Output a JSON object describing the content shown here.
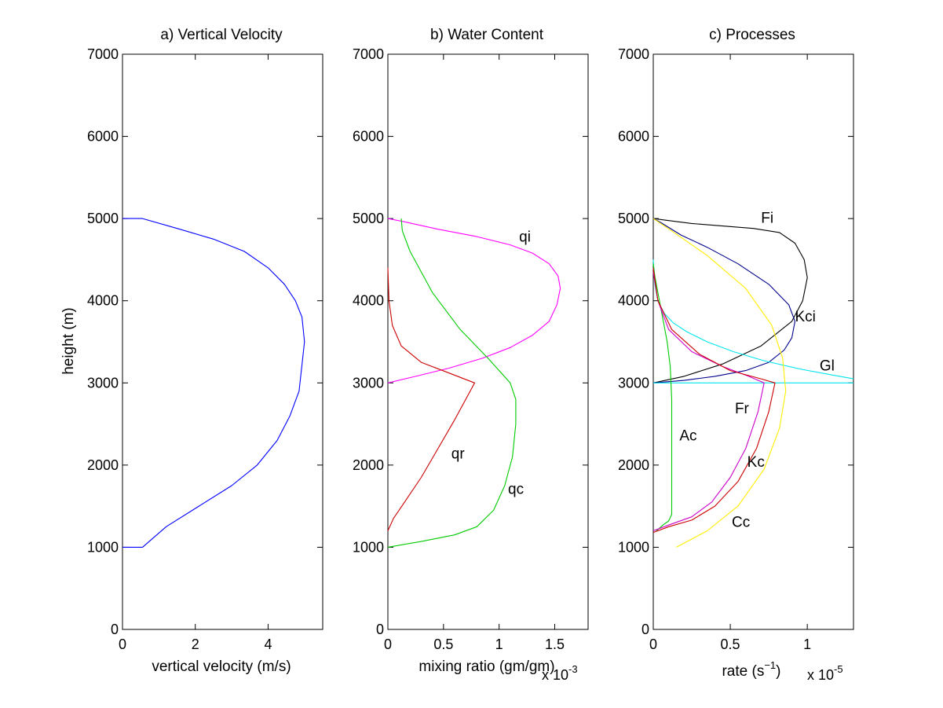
{
  "figure": {
    "background": "#ffffff",
    "axis_color": "#000000"
  },
  "chart_data": [
    {
      "type": "line",
      "title": "a) Vertical Velocity",
      "xlabel": "vertical velocity (m/s)",
      "ylabel": "height (m)",
      "x_exponent_label": "",
      "xlim": [
        0,
        5.5
      ],
      "ylim": [
        0,
        7000
      ],
      "xticks": [
        0,
        2,
        4
      ],
      "xtick_labels": [
        "0",
        "2",
        "4"
      ],
      "yticks": [
        0,
        1000,
        2000,
        3000,
        4000,
        5000,
        6000,
        7000
      ],
      "ytick_labels": [
        "0",
        "1000",
        "2000",
        "3000",
        "4000",
        "5000",
        "6000",
        "7000"
      ],
      "grid": false,
      "series": [
        {
          "color": "#0000ff",
          "x": [
            0,
            0.55,
            1.2,
            2.1,
            3.0,
            3.7,
            4.25,
            4.6,
            4.85,
            5.0,
            4.93,
            4.75,
            4.45,
            4.0,
            3.35,
            2.5,
            1.5,
            0.55,
            0
          ],
          "y": [
            1000,
            1000,
            1250,
            1500,
            1750,
            2000,
            2300,
            2600,
            2900,
            3500,
            3800,
            4000,
            4200,
            4400,
            4600,
            4750,
            4880,
            5000,
            5000
          ]
        }
      ],
      "annotations": []
    },
    {
      "type": "line",
      "title": "b) Water Content",
      "xlabel": "mixing ratio (gm/gm)",
      "ylabel": "",
      "x_exponent_label": "x 10",
      "x_exponent_power": "-3",
      "xlim": [
        0,
        1.8
      ],
      "ylim": [
        0,
        7000
      ],
      "xticks": [
        0,
        0.5,
        1,
        1.5
      ],
      "xtick_labels": [
        "0",
        "0.5",
        "1",
        "1.5"
      ],
      "yticks": [
        0,
        1000,
        2000,
        3000,
        4000,
        5000,
        6000,
        7000
      ],
      "ytick_labels": [
        "0",
        "1000",
        "2000",
        "3000",
        "4000",
        "5000",
        "6000",
        "7000"
      ],
      "grid": false,
      "series": [
        {
          "name": "qi",
          "color": "#ff00ff",
          "x": [
            0,
            0.25,
            0.55,
            0.85,
            1.1,
            1.3,
            1.45,
            1.52,
            1.55,
            1.53,
            1.45,
            1.3,
            1.1,
            0.8,
            0.45,
            0.15,
            0
          ],
          "y": [
            3000,
            3080,
            3180,
            3300,
            3430,
            3580,
            3750,
            3950,
            4150,
            4300,
            4450,
            4580,
            4680,
            4780,
            4870,
            4960,
            5000
          ]
        },
        {
          "name": "qc",
          "color": "#00cc00",
          "x": [
            0,
            0.3,
            0.6,
            0.8,
            0.95,
            1.05,
            1.12,
            1.15,
            1.15,
            1.1,
            0.9,
            0.65,
            0.4,
            0.2,
            0.13,
            0.12
          ],
          "y": [
            1000,
            1070,
            1150,
            1250,
            1450,
            1750,
            2100,
            2500,
            2800,
            3000,
            3300,
            3650,
            4100,
            4600,
            4850,
            5000
          ]
        },
        {
          "name": "qr",
          "color": "#cc0000",
          "x": [
            0,
            0.05,
            0.15,
            0.3,
            0.45,
            0.6,
            0.78,
            0.55,
            0.3,
            0.12,
            0.04,
            0.01,
            0
          ],
          "y": [
            1200,
            1350,
            1550,
            1850,
            2200,
            2550,
            3000,
            3120,
            3250,
            3450,
            3700,
            4000,
            4400
          ]
        }
      ],
      "annotations": [
        {
          "text": "qi",
          "x": 1.18,
          "y": 4720
        },
        {
          "text": "qc",
          "x": 1.08,
          "y": 1650
        },
        {
          "text": "qr",
          "x": 0.57,
          "y": 2080
        }
      ]
    },
    {
      "type": "line",
      "title": "c) Processes",
      "xlabel": "rate (s",
      "xlabel_sup": "−1",
      "xlabel_tail": ")",
      "ylabel": "",
      "x_exponent_label": "x 10",
      "x_exponent_power": "-5",
      "xlim": [
        0,
        1.3
      ],
      "ylim": [
        0,
        7000
      ],
      "xticks": [
        0,
        0.5,
        1
      ],
      "xtick_labels": [
        "0",
        "0.5",
        "1"
      ],
      "yticks": [
        0,
        1000,
        2000,
        3000,
        4000,
        5000,
        6000,
        7000
      ],
      "ytick_labels": [
        "0",
        "1000",
        "2000",
        "3000",
        "4000",
        "5000",
        "6000",
        "7000"
      ],
      "grid": false,
      "series": [
        {
          "name": "Fi",
          "color": "#000000",
          "x": [
            0,
            0.2,
            0.45,
            0.7,
            0.9,
            0.97,
            1.0,
            0.98,
            0.92,
            0.82,
            0.65,
            0.45,
            0.25,
            0.08,
            0
          ],
          "y": [
            3000,
            3080,
            3230,
            3450,
            3750,
            4000,
            4280,
            4500,
            4700,
            4830,
            4880,
            4910,
            4940,
            4980,
            5000
          ]
        },
        {
          "name": "Kci",
          "color": "#00008b",
          "x": [
            0,
            0.2,
            0.4,
            0.6,
            0.75,
            0.85,
            0.9,
            0.92,
            0.88,
            0.75,
            0.55,
            0.35,
            0.18,
            0.05,
            0
          ],
          "y": [
            3000,
            3030,
            3080,
            3150,
            3250,
            3400,
            3550,
            3750,
            3950,
            4200,
            4450,
            4650,
            4800,
            4950,
            5000
          ]
        },
        {
          "name": "Gl",
          "color": "#00e5ee",
          "x": [
            0,
            0.01,
            0.03,
            0.07,
            0.13,
            0.22,
            0.35,
            0.52,
            0.72,
            0.95,
            1.15,
            1.3
          ],
          "y": [
            4500,
            4200,
            4000,
            3850,
            3730,
            3620,
            3500,
            3380,
            3270,
            3170,
            3100,
            3050
          ]
        },
        {
          "name": "Gl (base)",
          "color": "#00e5ee",
          "x": [
            0,
            1.3
          ],
          "y": [
            3000,
            3000
          ]
        },
        {
          "name": "Ac",
          "color": "#00cc00",
          "x": [
            0.02,
            0.07,
            0.1,
            0.12,
            0.12,
            0.12,
            0.11,
            0.09,
            0.06,
            0.03,
            0.01,
            0
          ],
          "y": [
            1200,
            1280,
            1320,
            1400,
            2000,
            2800,
            3200,
            3500,
            3800,
            4100,
            4300,
            4450
          ]
        },
        {
          "name": "Fr",
          "color": "#cc00cc",
          "x": [
            0,
            0.1,
            0.25,
            0.38,
            0.5,
            0.6,
            0.68,
            0.72,
            0.62,
            0.45,
            0.25,
            0.1,
            0.03,
            0
          ],
          "y": [
            1200,
            1270,
            1370,
            1550,
            1850,
            2200,
            2650,
            3000,
            3080,
            3200,
            3380,
            3650,
            4000,
            4350
          ]
        },
        {
          "name": "Kc",
          "color": "#cc0000",
          "x": [
            0,
            0.1,
            0.25,
            0.4,
            0.55,
            0.67,
            0.75,
            0.79,
            0.7,
            0.5,
            0.3,
            0.12,
            0.03,
            0
          ],
          "y": [
            1180,
            1250,
            1330,
            1500,
            1800,
            2200,
            2650,
            3000,
            3050,
            3150,
            3350,
            3650,
            4000,
            4400
          ]
        },
        {
          "name": "Cc",
          "color": "#ffee00",
          "x": [
            0.15,
            0.35,
            0.55,
            0.72,
            0.82,
            0.86,
            0.84,
            0.77,
            0.6,
            0.35,
            0.12,
            0
          ],
          "y": [
            1000,
            1200,
            1500,
            1950,
            2450,
            2900,
            3300,
            3700,
            4150,
            4550,
            4850,
            5000
          ]
        }
      ],
      "annotations": [
        {
          "text": "Fi",
          "x": 0.7,
          "y": 4950
        },
        {
          "text": "Kci",
          "x": 0.92,
          "y": 3750
        },
        {
          "text": "Gl",
          "x": 1.08,
          "y": 3150
        },
        {
          "text": "Fr",
          "x": 0.53,
          "y": 2630
        },
        {
          "text": "Ac",
          "x": 0.17,
          "y": 2300
        },
        {
          "text": "Kc",
          "x": 0.61,
          "y": 1980
        },
        {
          "text": "Cc",
          "x": 0.51,
          "y": 1250
        }
      ]
    }
  ]
}
